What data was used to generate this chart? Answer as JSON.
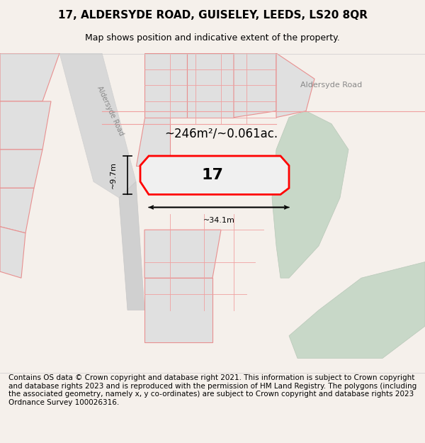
{
  "title": "17, ALDERSYDE ROAD, GUISELEY, LEEDS, LS20 8QR",
  "subtitle": "Map shows position and indicative extent of the property.",
  "footer": "Contains OS data © Crown copyright and database right 2021. This information is subject to Crown copyright and database rights 2023 and is reproduced with the permission of HM Land Registry. The polygons (including the associated geometry, namely x, y co-ordinates) are subject to Crown copyright and database rights 2023 Ordnance Survey 100026316.",
  "area_label": "~246m²/~0.061ac.",
  "width_label": "~34.1m",
  "height_label": "~9.7m",
  "number_label": "17",
  "bg_color": "#f5f0eb",
  "map_bg": "#ffffff",
  "road_color": "#c8c8c8",
  "plot_fill": "#e8e8e8",
  "highlight_fill": "#f0f0f0",
  "red_outline": "#ff0000",
  "pink_line": "#f0a0a0",
  "green_area": "#c8dbc8",
  "title_fontsize": 11,
  "subtitle_fontsize": 9,
  "footer_fontsize": 7.5
}
